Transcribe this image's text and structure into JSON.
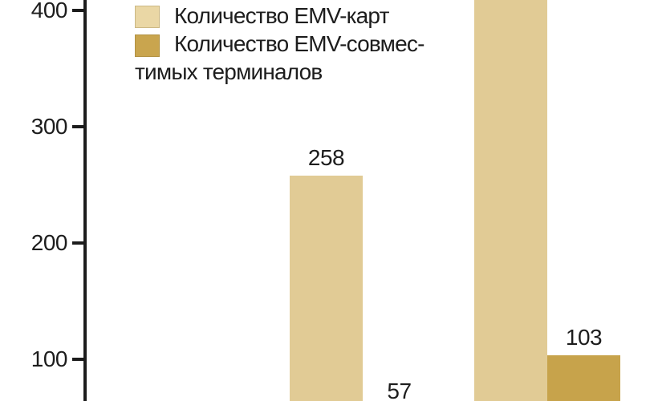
{
  "colors": {
    "background": "#FFFFFF",
    "axis": "#1C1C1C",
    "text": "#1D1D1D",
    "emv_cards_bar": "#E1CB95",
    "emv_terminals_bar": "#C7A34B",
    "legend_swatch_cards": "#EAD7A5",
    "legend_swatch_terminals": "#C9A54E"
  },
  "legend": {
    "item1_label": "Количество EMV-карт",
    "item2_label_line1": "Количество EMV-совмес-",
    "item2_label_line2": "тимых терминалов"
  },
  "chart_data": {
    "type": "bar",
    "title": "",
    "xlabel": "",
    "ylabel": "",
    "categories": [
      "",
      ""
    ],
    "series": [
      {
        "name": "Количество EMV-карт",
        "color": "#E1CB95",
        "values": [
          258,
          null
        ],
        "note": "second bar is cropped at the top edge of the image; its value label is not visible"
      },
      {
        "name": "Количество EMV-совместимых терминалов",
        "color": "#C7A34B",
        "values": [
          57,
          103
        ],
        "note": "the 57-bar top lies below the cropped bottom edge; only its value label is visible"
      }
    ],
    "value_labels_visible": [
      "258",
      "57",
      "103"
    ],
    "yticks": [
      100,
      200,
      300,
      400
    ],
    "grid": false,
    "legend_position": "top-left",
    "crop": "chart is cropped: x-axis baseline (0) is below the bottom edge; tallest bar extends past the top edge"
  }
}
